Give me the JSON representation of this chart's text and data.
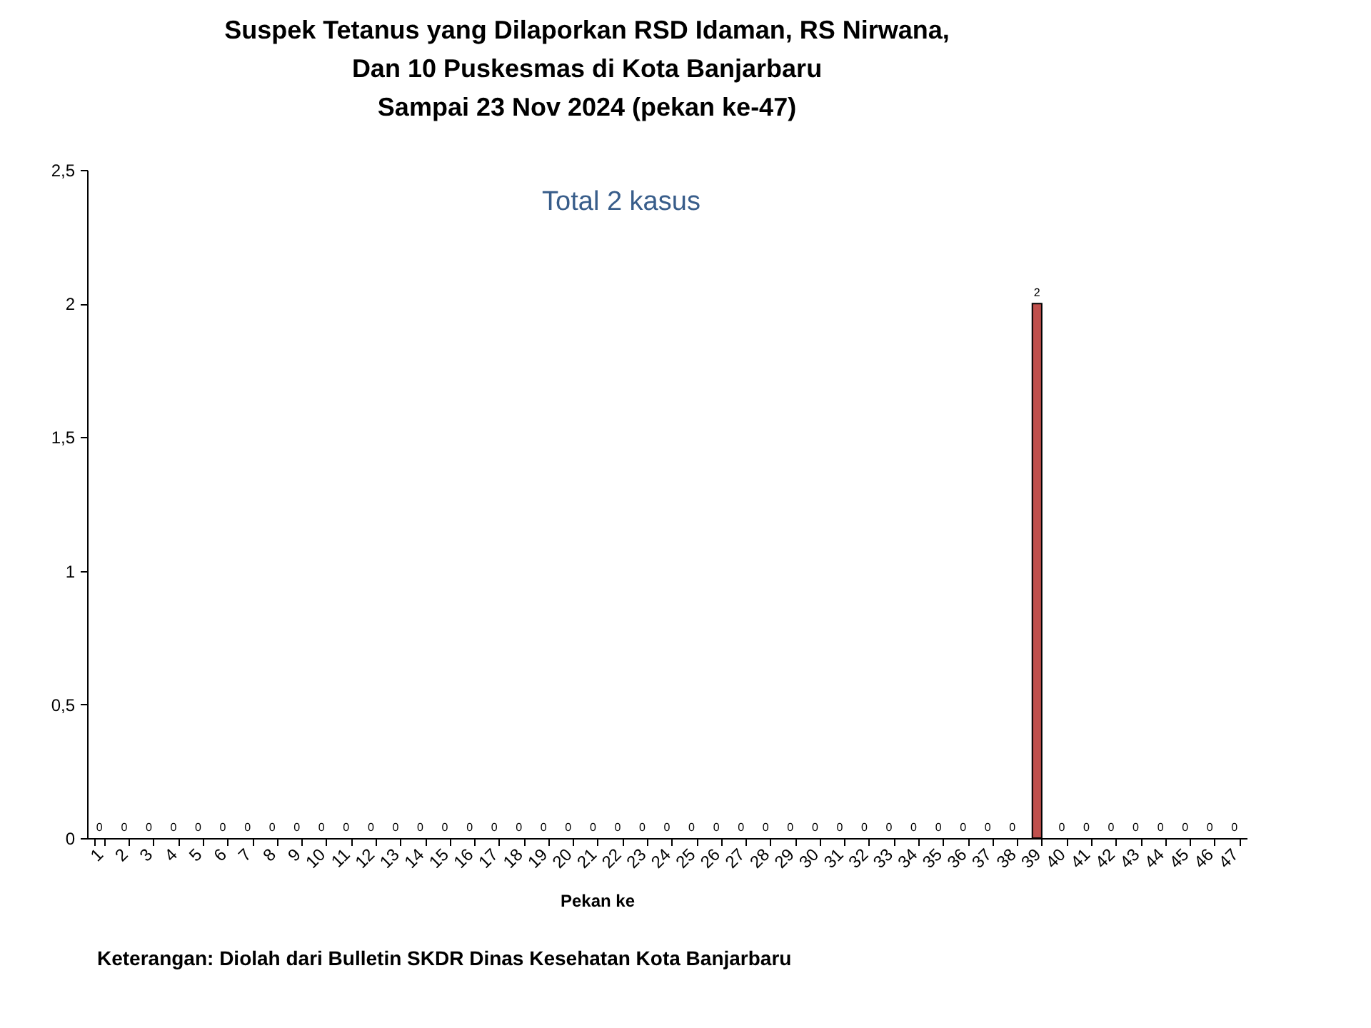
{
  "chart_data": {
    "type": "bar",
    "title": "Suspek Tetanus yang Dilaporkan RSD Idaman, RS Nirwana,\nDan 10 Puskesmas di Kota Banjarbaru\nSampai 23 Nov 2024 (pekan ke-47)",
    "xlabel": "Pekan ke",
    "categories": [
      "1",
      "2",
      "3",
      "4",
      "5",
      "6",
      "7",
      "8",
      "9",
      "10",
      "11",
      "12",
      "13",
      "14",
      "15",
      "16",
      "17",
      "18",
      "19",
      "20",
      "21",
      "22",
      "23",
      "24",
      "25",
      "26",
      "27",
      "28",
      "29",
      "30",
      "31",
      "32",
      "33",
      "34",
      "35",
      "36",
      "37",
      "38",
      "39",
      "40",
      "41",
      "42",
      "43",
      "44",
      "45",
      "46",
      "47"
    ],
    "values": [
      0,
      0,
      0,
      0,
      0,
      0,
      0,
      0,
      0,
      0,
      0,
      0,
      0,
      0,
      0,
      0,
      0,
      0,
      0,
      0,
      0,
      0,
      0,
      0,
      0,
      0,
      0,
      0,
      0,
      0,
      0,
      0,
      0,
      0,
      0,
      0,
      0,
      0,
      2,
      0,
      0,
      0,
      0,
      0,
      0,
      0,
      0
    ],
    "color": "#c0504d",
    "ylim": [
      0,
      2.5
    ],
    "yticks": [
      0,
      {
        "value": 0.5,
        "label": "0,5"
      },
      1,
      {
        "value": 1.5,
        "label": "1,5"
      },
      2,
      {
        "value": 2.5,
        "label": "2,5"
      }
    ],
    "data_labels": true,
    "annotations": [
      "Total 2 kasus",
      "Keterangan: Diolah dari Bulletin SKDR Dinas Kesehatan Kota Banjarbaru"
    ]
  }
}
